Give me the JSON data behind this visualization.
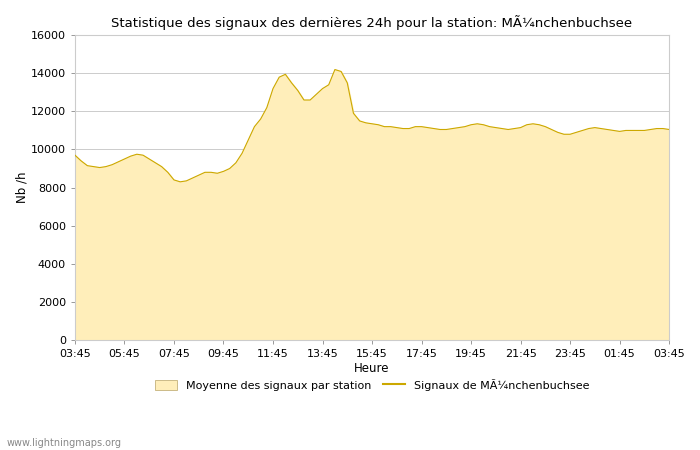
{
  "title": "Statistique des signaux des dernières 24h pour la station: MÃ¼nchenbuchsee",
  "xlabel": "Heure",
  "ylabel": "Nb /h",
  "ylim": [
    0,
    16000
  ],
  "yticks": [
    0,
    2000,
    4000,
    6000,
    8000,
    10000,
    12000,
    14000,
    16000
  ],
  "x_labels": [
    "03:45",
    "05:45",
    "07:45",
    "09:45",
    "11:45",
    "13:45",
    "15:45",
    "17:45",
    "19:45",
    "21:45",
    "23:45",
    "01:45",
    "03:45"
  ],
  "fill_color": "#FFEEBA",
  "line_color": "#CCA800",
  "background_color": "#FFFFFF",
  "grid_color": "#CCCCCC",
  "legend_fill_label": "Moyenne des signaux par station",
  "legend_line_label": "Signaux de MÃ¼nchenbuchsee",
  "watermark": "www.lightningmaps.org",
  "y_values": [
    9700,
    9400,
    9150,
    9100,
    9050,
    9100,
    9200,
    9350,
    9500,
    9650,
    9750,
    9700,
    9500,
    9300,
    9100,
    8800,
    8400,
    8300,
    8350,
    8500,
    8650,
    8800,
    8800,
    8750,
    8850,
    9000,
    9300,
    9800,
    10500,
    11200,
    11600,
    12200,
    13200,
    13800,
    13950,
    13500,
    13100,
    12600,
    12600,
    12900,
    13200,
    13400,
    14200,
    14100,
    13500,
    11900,
    11500,
    11400,
    11350,
    11300,
    11200,
    11200,
    11150,
    11100,
    11100,
    11200,
    11200,
    11150,
    11100,
    11050,
    11050,
    11100,
    11150,
    11200,
    11300,
    11350,
    11300,
    11200,
    11150,
    11100,
    11050,
    11100,
    11150,
    11300,
    11350,
    11300,
    11200,
    11050,
    10900,
    10800,
    10800,
    10900,
    11000,
    11100,
    11150,
    11100,
    11050,
    11000,
    10950,
    11000,
    11000,
    11000,
    11000,
    11050,
    11100,
    11100,
    11050
  ]
}
